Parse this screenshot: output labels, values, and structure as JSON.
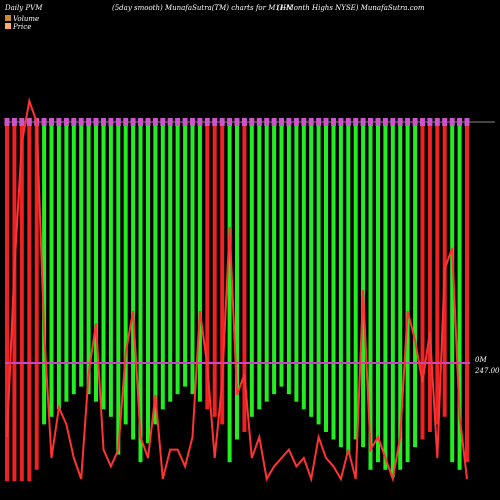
{
  "header": {
    "left": "Daily PVM",
    "center": "(5day smooth) MunafaSutra(TM) charts for M1HN",
    "right": "(1-Month Highs NYSE) MunafaSutra.com"
  },
  "legend": {
    "volume": "Volume",
    "price": "Price"
  },
  "labels": {
    "volume_value": "0M",
    "price_value": "247.00"
  },
  "colors": {
    "background": "#000000",
    "up": "#22ee22",
    "down": "#ee2222",
    "price_line": "#ff3333",
    "volume_line": "#cc44cc",
    "grid": "#888888",
    "marker": "#cc55cc",
    "legend_volume": "#cc8833",
    "legend_price": "#ffaa66"
  },
  "chart_data": {
    "type": "bar",
    "title": "(5day smooth) MunafaSutra(TM) charts for M1HN",
    "xlabel": "",
    "ylabel": "",
    "volume_ylim": [
      0,
      100
    ],
    "price_ylim": [
      0,
      100
    ],
    "series": [
      {
        "name": "Volume",
        "colors": [
          "down",
          "down",
          "down",
          "down",
          "down",
          "up",
          "up",
          "up",
          "up",
          "up",
          "up",
          "up",
          "up",
          "up",
          "up",
          "up",
          "up",
          "up",
          "up",
          "up",
          "up",
          "up",
          "up",
          "up",
          "up",
          "up",
          "up",
          "down",
          "down",
          "down",
          "up",
          "up",
          "down",
          "up",
          "up",
          "up",
          "up",
          "up",
          "up",
          "up",
          "up",
          "up",
          "up",
          "up",
          "up",
          "up",
          "up",
          "up",
          "up",
          "up",
          "up",
          "up",
          "up",
          "up",
          "up",
          "up",
          "down",
          "down",
          "down",
          "down",
          "up",
          "up",
          "down"
        ],
        "values": [
          95,
          95,
          95,
          95,
          92,
          80,
          78,
          76,
          74,
          72,
          70,
          72,
          74,
          76,
          78,
          88,
          80,
          84,
          90,
          85,
          80,
          76,
          74,
          72,
          70,
          72,
          74,
          76,
          78,
          80,
          90,
          84,
          82,
          78,
          76,
          74,
          72,
          70,
          72,
          74,
          76,
          78,
          80,
          82,
          84,
          86,
          88,
          84,
          86,
          92,
          90,
          92,
          94,
          92,
          90,
          86,
          84,
          82,
          80,
          78,
          90,
          92,
          90
        ]
      },
      {
        "name": "Price",
        "values": [
          15,
          55,
          85,
          95,
          90,
          40,
          10,
          22,
          18,
          10,
          5,
          30,
          42,
          12,
          8,
          12,
          35,
          45,
          15,
          10,
          25,
          5,
          12,
          12,
          8,
          15,
          45,
          32,
          10,
          28,
          65,
          25,
          30,
          10,
          15,
          5,
          8,
          10,
          12,
          8,
          10,
          5,
          15,
          10,
          8,
          5,
          12,
          5,
          50,
          12,
          15,
          10,
          5,
          15,
          45,
          38,
          28,
          40,
          10,
          55,
          60,
          20,
          5
        ]
      }
    ],
    "grid": false,
    "legend_placement": "top-left"
  }
}
